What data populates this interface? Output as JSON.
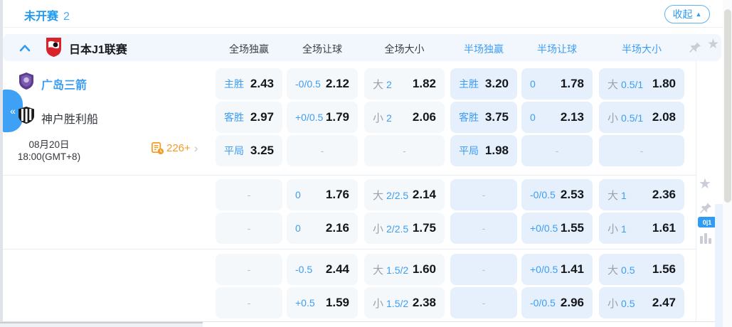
{
  "topbar": {
    "status": "未开赛",
    "count": "2",
    "collapse_label": "收起"
  },
  "league": {
    "name": "日本J1联赛",
    "headers": [
      {
        "label": "全场独赢",
        "group": "full"
      },
      {
        "label": "全场让球",
        "group": "full"
      },
      {
        "label": "全场大小",
        "group": "full"
      },
      {
        "label": "半场独赢",
        "group": "half"
      },
      {
        "label": "半场让球",
        "group": "half"
      },
      {
        "label": "半场大小",
        "group": "half"
      }
    ]
  },
  "match": {
    "home_team": "广岛三箭",
    "away_team": "神户胜利船",
    "date": "08月20日",
    "time": "18:00(GMT+8)",
    "markets_count": "226+",
    "corner_badge": "0|1"
  },
  "icons": {
    "collapse_triangle": "▲",
    "sidebar_collapse": "«",
    "more_chevron": "›",
    "star": "★",
    "dash": "-"
  },
  "colors": {
    "accent_blue": "#2f9bf4",
    "label_blue": "#3d9df3",
    "ou_prefix_gray": "#9ba1ab",
    "orange": "#f59a23",
    "cell_full_bg": "#f5f8fb",
    "cell_half_bg": "#e5f0fc",
    "league_row_bg": "#f2f7fd"
  },
  "odds_rows": [
    [
      {
        "kind": "win",
        "label": "主胜",
        "value": "2.43"
      },
      {
        "kind": "hcp",
        "label": "-0/0.5",
        "value": "2.12"
      },
      {
        "kind": "ou",
        "prefix": "大",
        "hcp": "2",
        "value": "1.82"
      },
      {
        "kind": "win",
        "label": "主胜",
        "value": "3.20"
      },
      {
        "kind": "hcp",
        "label": "0",
        "value": "1.78"
      },
      {
        "kind": "ou",
        "prefix": "大",
        "hcp": "0.5/1",
        "value": "1.80"
      }
    ],
    [
      {
        "kind": "win",
        "label": "客胜",
        "value": "2.97"
      },
      {
        "kind": "hcp",
        "label": "+0/0.5",
        "value": "1.79"
      },
      {
        "kind": "ou",
        "prefix": "小",
        "hcp": "2",
        "value": "2.06"
      },
      {
        "kind": "win",
        "label": "客胜",
        "value": "3.75"
      },
      {
        "kind": "hcp",
        "label": "0",
        "value": "2.13"
      },
      {
        "kind": "ou",
        "prefix": "小",
        "hcp": "0.5/1",
        "value": "2.08"
      }
    ],
    [
      {
        "kind": "win",
        "label": "平局",
        "value": "3.25"
      },
      {
        "kind": "dash"
      },
      {
        "kind": "dash"
      },
      {
        "kind": "win",
        "label": "平局",
        "value": "1.98"
      },
      {
        "kind": "dash"
      },
      {
        "kind": "dash"
      }
    ],
    [
      {
        "kind": "dash"
      },
      {
        "kind": "hcp",
        "label": "0",
        "value": "1.76"
      },
      {
        "kind": "ou",
        "prefix": "大",
        "hcp": "2/2.5",
        "value": "2.14"
      },
      {
        "kind": "dash"
      },
      {
        "kind": "hcp",
        "label": "-0/0.5",
        "value": "2.53"
      },
      {
        "kind": "ou",
        "prefix": "大",
        "hcp": "1",
        "value": "2.36"
      }
    ],
    [
      {
        "kind": "dash"
      },
      {
        "kind": "hcp",
        "label": "0",
        "value": "2.16"
      },
      {
        "kind": "ou",
        "prefix": "小",
        "hcp": "2/2.5",
        "value": "1.75"
      },
      {
        "kind": "dash"
      },
      {
        "kind": "hcp",
        "label": "+0/0.5",
        "value": "1.55"
      },
      {
        "kind": "ou",
        "prefix": "小",
        "hcp": "1",
        "value": "1.61"
      }
    ],
    [
      {
        "kind": "dash"
      },
      {
        "kind": "hcp",
        "label": "-0.5",
        "value": "2.44"
      },
      {
        "kind": "ou",
        "prefix": "大",
        "hcp": "1.5/2",
        "value": "1.60"
      },
      {
        "kind": "dash"
      },
      {
        "kind": "hcp",
        "label": "+0/0.5",
        "value": "1.41"
      },
      {
        "kind": "ou",
        "prefix": "大",
        "hcp": "0.5",
        "value": "1.56"
      }
    ],
    [
      {
        "kind": "dash"
      },
      {
        "kind": "hcp",
        "label": "+0.5",
        "value": "1.59"
      },
      {
        "kind": "ou",
        "prefix": "小",
        "hcp": "1.5/2",
        "value": "2.38"
      },
      {
        "kind": "dash"
      },
      {
        "kind": "hcp",
        "label": "-0/0.5",
        "value": "2.96"
      },
      {
        "kind": "ou",
        "prefix": "小",
        "hcp": "0.5",
        "value": "2.47"
      }
    ]
  ]
}
